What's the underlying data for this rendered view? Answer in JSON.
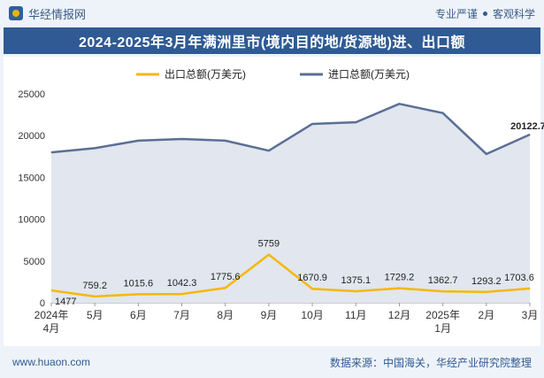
{
  "header": {
    "brand": "华经情报网",
    "tagline_left": "专业严谨",
    "tagline_right": "客观科学"
  },
  "title": "2024-2025年3月年满洲里市(境内目的地/货源地)进、出口额",
  "footer": {
    "website": "www.huaon.com",
    "source": "数据来源：中国海关，华经产业研究院整理"
  },
  "chart_data": {
    "type": "line",
    "categories": [
      "2024年4月",
      "5月",
      "6月",
      "7月",
      "8月",
      "9月",
      "10月",
      "11月",
      "12月",
      "2025年1月",
      "2月",
      "3月"
    ],
    "series": [
      {
        "name": "出口总额(万美元)",
        "color": "#f5b800",
        "values": [
          1477,
          759.2,
          1015.6,
          1042.3,
          1775.6,
          5759,
          1670.9,
          1375.1,
          1729.2,
          1362.7,
          1293.2,
          1703.6
        ],
        "labels": [
          "1477",
          "759.2",
          "1015.6",
          "1042.3",
          "1775.6",
          "5759",
          "1670.9",
          "1375.1",
          "1729.2",
          "1362.7",
          "1293.2",
          "1703.6"
        ]
      },
      {
        "name": "进口总额(万美元)",
        "color": "#5b6f95",
        "area_color": "#e1e6ef",
        "values": [
          18000,
          18500,
          19400,
          19600,
          19400,
          18200,
          21400,
          21600,
          23800,
          22700,
          17800,
          20122.7
        ],
        "labels": [
          "",
          "",
          "",
          "",
          "",
          "",
          "",
          "",
          "",
          "",
          "",
          "20122.7"
        ]
      }
    ],
    "y_ticks": [
      "0",
      "5000",
      "10000",
      "15000",
      "20000",
      "25000"
    ],
    "ylim": [
      0,
      25000
    ],
    "legend_position": "top"
  }
}
